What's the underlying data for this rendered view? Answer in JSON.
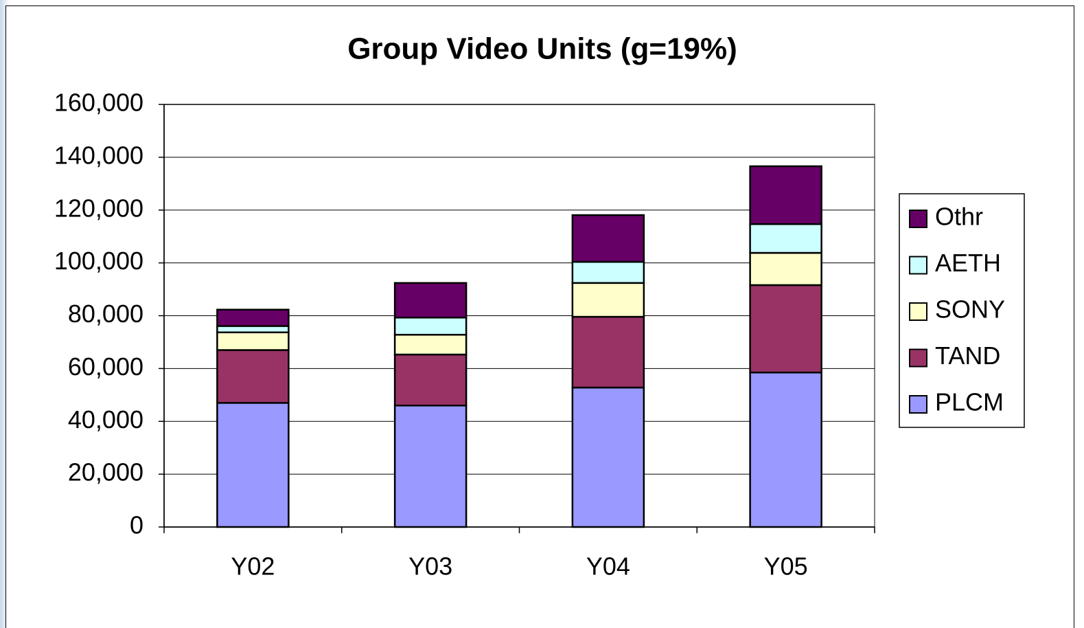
{
  "chart_data": {
    "type": "stacked_bar",
    "title": "Group Video Units (g=19%)",
    "categories": [
      "Y02",
      "Y03",
      "Y04",
      "Y05"
    ],
    "series": [
      {
        "name": "PLCM",
        "color": "#9999ff",
        "values": [
          47000,
          46000,
          52800,
          58500
        ]
      },
      {
        "name": "TAND",
        "color": "#993366",
        "values": [
          20000,
          19300,
          26800,
          33100
        ]
      },
      {
        "name": "SONY",
        "color": "#ffffcc",
        "values": [
          6700,
          7500,
          12800,
          12200
        ]
      },
      {
        "name": "AETH",
        "color": "#ccffff",
        "values": [
          2400,
          6500,
          8000,
          10900
        ]
      },
      {
        "name": "Othr",
        "color": "#660066",
        "values": [
          6200,
          13100,
          17700,
          21900
        ]
      }
    ],
    "ylim": [
      0,
      160000
    ],
    "yticks": [
      0,
      {
        "value": 20000,
        "label": "20,000"
      },
      {
        "value": 40000,
        "label": "40,000"
      },
      {
        "value": 60000,
        "label": "60,000"
      },
      {
        "value": 80000,
        "label": "80,000"
      },
      {
        "value": 100000,
        "label": "100,000"
      },
      {
        "value": 120000,
        "label": "120,000"
      },
      {
        "value": 140000,
        "label": "140,000"
      },
      {
        "value": 160000,
        "label": "160,000"
      }
    ],
    "grid": true,
    "legend": "right"
  }
}
